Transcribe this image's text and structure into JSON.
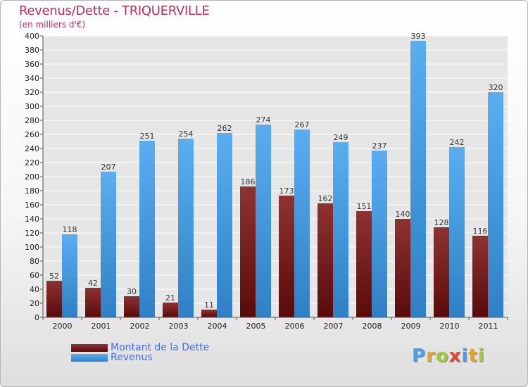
{
  "title": "Revenus/Dette - TRIQUERVILLE",
  "subtitle": "(en milliers d'€)",
  "legend": {
    "debt_label": "Montant de la Dette",
    "revenue_label": "Revenus"
  },
  "logo": {
    "letters": [
      "P",
      "r",
      "o",
      "x",
      "i",
      "t",
      "i"
    ],
    "colors": [
      "#49a0e6",
      "#e2a232",
      "#a3c93a",
      "#e0493b",
      "#49a0e6",
      "#e2a232",
      "#a3c93a"
    ]
  },
  "colors": {
    "debt_top": "#8e3232",
    "debt_bottom": "#5a0a0a",
    "revenue_top": "#5aaef0",
    "revenue_bottom": "#2f80c6",
    "axis": "#555555",
    "grid": "#ffffff"
  },
  "chart_data": {
    "type": "bar",
    "title": "Revenus/Dette - TRIQUERVILLE",
    "subtitle": "(en milliers d'€)",
    "xlabel": "",
    "ylabel": "",
    "ylim": [
      0,
      400
    ],
    "ytick_step": 20,
    "grid": true,
    "legend_position": "bottom-left",
    "categories": [
      "2000",
      "2001",
      "2002",
      "2003",
      "2004",
      "2005",
      "2006",
      "2007",
      "2008",
      "2009",
      "2010",
      "2011"
    ],
    "series": [
      {
        "name": "Montant de la Dette",
        "values": [
          52,
          42,
          30,
          21,
          11,
          186,
          173,
          162,
          151,
          140,
          128,
          116
        ]
      },
      {
        "name": "Revenus",
        "values": [
          118,
          207,
          251,
          254,
          262,
          274,
          267,
          249,
          237,
          393,
          242,
          320
        ]
      }
    ]
  }
}
